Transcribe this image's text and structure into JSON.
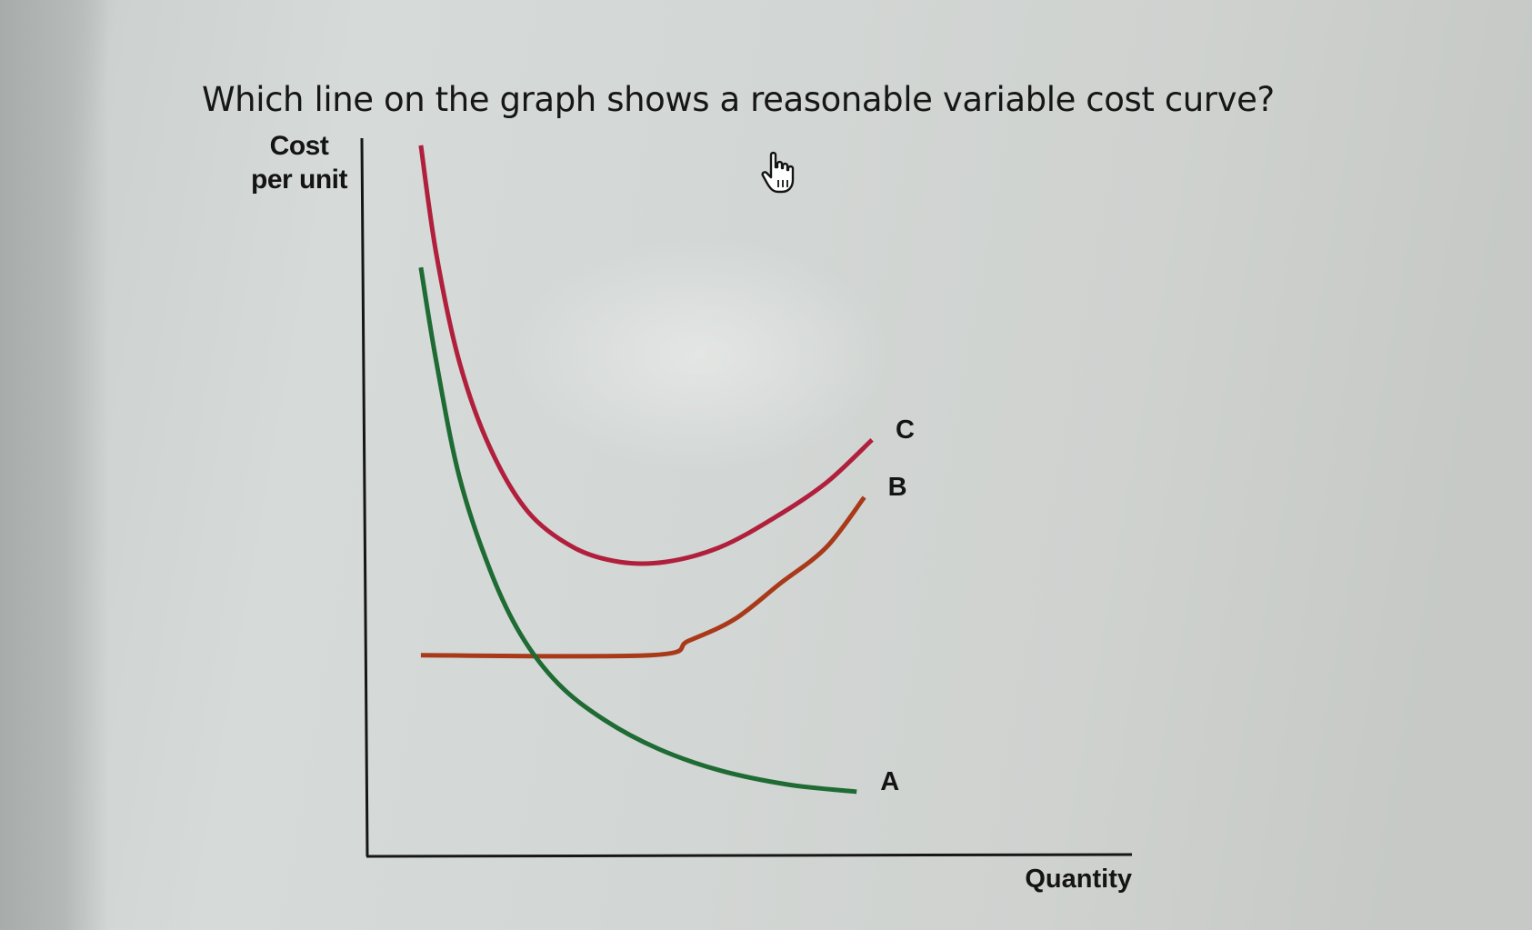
{
  "question": {
    "text": "Which line on the graph shows a reasonable variable cost curve?"
  },
  "chart_data": {
    "type": "line",
    "title": "",
    "ylabel_lines": [
      "Cost",
      "per unit"
    ],
    "xlabel": "Quantity",
    "xlim": [
      0,
      10
    ],
    "ylim": [
      0,
      10
    ],
    "grid": false,
    "axis_ticks": false,
    "series": [
      {
        "name": "C",
        "color": "#b0203c",
        "points": [
          [
            0.7,
            9.9
          ],
          [
            0.9,
            8.4
          ],
          [
            1.2,
            6.9
          ],
          [
            1.6,
            5.7
          ],
          [
            2.1,
            4.8
          ],
          [
            2.7,
            4.3
          ],
          [
            3.3,
            4.1
          ],
          [
            3.9,
            4.1
          ],
          [
            4.6,
            4.3
          ],
          [
            5.3,
            4.7
          ],
          [
            6.0,
            5.2
          ],
          [
            6.6,
            5.8
          ]
        ],
        "label_text": "C"
      },
      {
        "name": "B",
        "color": "#a83a1a",
        "points": [
          [
            0.7,
            2.8
          ],
          [
            3.7,
            2.8
          ],
          [
            4.2,
            3.0
          ],
          [
            4.8,
            3.3
          ],
          [
            5.4,
            3.8
          ],
          [
            6.0,
            4.3
          ],
          [
            6.5,
            5.0
          ]
        ],
        "label_text": "B"
      },
      {
        "name": "A",
        "color": "#1e6b34",
        "points": [
          [
            0.7,
            8.2
          ],
          [
            0.9,
            6.9
          ],
          [
            1.2,
            5.3
          ],
          [
            1.6,
            4.0
          ],
          [
            2.0,
            3.1
          ],
          [
            2.5,
            2.4
          ],
          [
            3.1,
            1.9
          ],
          [
            3.8,
            1.5
          ],
          [
            4.6,
            1.2
          ],
          [
            5.5,
            1.0
          ],
          [
            6.4,
            0.9
          ]
        ],
        "label_text": "A"
      }
    ]
  },
  "colors": {
    "axis": "#161616",
    "label_text": "#141414"
  },
  "cursor": {
    "icon": "hand-pointer-icon"
  }
}
